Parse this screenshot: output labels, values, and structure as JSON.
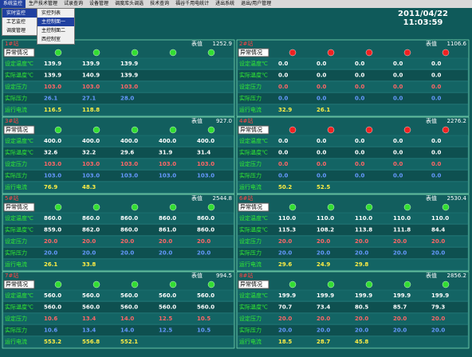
{
  "menu": [
    "系统监控",
    "生产技术管理",
    "试录查询",
    "设备管理",
    "调度库头调选",
    "技术查询",
    "福谷千用电统计",
    "进出系统",
    "退出/用户管理"
  ],
  "dropdown": [
    "实时监控",
    "工艺监控",
    "调度管理"
  ],
  "submenu": [
    "实控列表",
    "主控制面一",
    "主控制面二",
    "西控制室"
  ],
  "date": "2011/04/22",
  "time": "11:03:59",
  "status_label": "异常情况",
  "total_label": "表值",
  "panels": [
    {
      "name": "1#站",
      "total": "1252.9",
      "lamp": "#33dd33",
      "rows": [
        {
          "label": "设定温度℃",
          "values": [
            "139.9",
            "139.9",
            "139.9"
          ]
        },
        {
          "label": "实际温度℃",
          "values": [
            "139.9",
            "140.9",
            "139.9"
          ]
        },
        {
          "label": "设定压力",
          "values": [
            "103.0",
            "103.0",
            "103.0"
          ]
        },
        {
          "label": "实际压力",
          "values": [
            "26.1",
            "27.1",
            "28.0"
          ]
        },
        {
          "label": "运行电流",
          "values": [
            "116.5",
            "118.8"
          ]
        }
      ]
    },
    {
      "name": "2#站",
      "total": "1106.6",
      "lamp": "#ee2222",
      "rows": [
        {
          "label": "设定温度℃",
          "values": [
            "0.0",
            "0.0",
            "0.0",
            "0.0",
            "0.0"
          ]
        },
        {
          "label": "实际温度℃",
          "values": [
            "0.0",
            "0.0",
            "0.0",
            "0.0",
            "0.0"
          ]
        },
        {
          "label": "设定压力",
          "values": [
            "0.0",
            "0.0",
            "0.0",
            "0.0",
            "0.0"
          ]
        },
        {
          "label": "实际压力",
          "values": [
            "0.0",
            "0.0",
            "0.0",
            "0.0",
            "0.0"
          ]
        },
        {
          "label": "运行电流",
          "values": [
            "32.9",
            "26.1"
          ]
        }
      ]
    },
    {
      "name": "3#站",
      "total": "927.0",
      "lamp": "#33dd33",
      "rows": [
        {
          "label": "设定温度℃",
          "values": [
            "400.0",
            "400.0",
            "400.0",
            "400.0",
            "400.0"
          ]
        },
        {
          "label": "实际温度℃",
          "values": [
            "32.6",
            "32.2",
            "29.6",
            "31.9",
            "31.4"
          ]
        },
        {
          "label": "设定压力",
          "values": [
            "103.0",
            "103.0",
            "103.0",
            "103.0",
            "103.0"
          ]
        },
        {
          "label": "实际压力",
          "values": [
            "103.0",
            "103.0",
            "103.0",
            "103.0",
            "103.0"
          ]
        },
        {
          "label": "运行电流",
          "values": [
            "76.9",
            "48.3"
          ]
        }
      ]
    },
    {
      "name": "4#站",
      "total": "2276.2",
      "lamp": "#ee2222",
      "rows": [
        {
          "label": "设定温度℃",
          "values": [
            "0.0",
            "0.0",
            "0.0",
            "0.0",
            "0.0"
          ]
        },
        {
          "label": "实际温度℃",
          "values": [
            "0.0",
            "0.0",
            "0.0",
            "0.0",
            "0.0"
          ]
        },
        {
          "label": "设定压力",
          "values": [
            "0.0",
            "0.0",
            "0.0",
            "0.0",
            "0.0"
          ]
        },
        {
          "label": "实际压力",
          "values": [
            "0.0",
            "0.0",
            "0.0",
            "0.0",
            "0.0"
          ]
        },
        {
          "label": "运行电流",
          "values": [
            "50.2",
            "52.5"
          ]
        }
      ]
    },
    {
      "name": "5#站",
      "total": "2544.8",
      "lamp": "#33dd33",
      "rows": [
        {
          "label": "设定温度℃",
          "values": [
            "860.0",
            "860.0",
            "860.0",
            "860.0",
            "860.0"
          ]
        },
        {
          "label": "实际温度℃",
          "values": [
            "859.0",
            "862.0",
            "860.0",
            "861.0",
            "860.0"
          ]
        },
        {
          "label": "设定压力",
          "values": [
            "20.0",
            "20.0",
            "20.0",
            "20.0",
            "20.0"
          ]
        },
        {
          "label": "实际压力",
          "values": [
            "20.0",
            "20.0",
            "20.0",
            "20.0",
            "20.0"
          ]
        },
        {
          "label": "运行电流",
          "values": [
            "26.1",
            "33.8"
          ]
        }
      ]
    },
    {
      "name": "6#站",
      "total": "2530.4",
      "lamp": "#33dd33",
      "rows": [
        {
          "label": "设定温度℃",
          "values": [
            "110.0",
            "110.0",
            "110.0",
            "110.0",
            "110.0"
          ]
        },
        {
          "label": "实际温度℃",
          "values": [
            "115.3",
            "108.2",
            "113.8",
            "111.8",
            "84.4"
          ]
        },
        {
          "label": "设定压力",
          "values": [
            "20.0",
            "20.0",
            "20.0",
            "20.0",
            "20.0"
          ]
        },
        {
          "label": "实际压力",
          "values": [
            "20.0",
            "20.0",
            "20.0",
            "20.0",
            "20.0"
          ]
        },
        {
          "label": "运行电流",
          "values": [
            "29.6",
            "24.9",
            "29.8"
          ]
        }
      ]
    },
    {
      "name": "7#站",
      "total": "994.5",
      "lamp": "#33dd33",
      "rows": [
        {
          "label": "设定温度℃",
          "values": [
            "560.0",
            "560.0",
            "560.0",
            "560.0",
            "560.0"
          ]
        },
        {
          "label": "实际温度℃",
          "values": [
            "560.0",
            "560.0",
            "560.0",
            "560.0",
            "560.0"
          ]
        },
        {
          "label": "设定压力",
          "values": [
            "10.6",
            "13.4",
            "14.0",
            "12.5",
            "10.5"
          ]
        },
        {
          "label": "实际压力",
          "values": [
            "10.6",
            "13.4",
            "14.0",
            "12.5",
            "10.5"
          ]
        },
        {
          "label": "运行电流",
          "values": [
            "553.2",
            "556.8",
            "552.1"
          ]
        }
      ]
    },
    {
      "name": "8#站",
      "total": "2856.2",
      "lamp": "#33dd33",
      "rows": [
        {
          "label": "设定温度℃",
          "values": [
            "199.9",
            "199.9",
            "199.9",
            "199.9",
            "199.9"
          ]
        },
        {
          "label": "实际温度℃",
          "values": [
            "70.7",
            "73.4",
            "80.5",
            "85.7",
            "79.3"
          ]
        },
        {
          "label": "设定压力",
          "values": [
            "20.0",
            "20.0",
            "20.0",
            "20.0",
            "20.0"
          ]
        },
        {
          "label": "实际压力",
          "values": [
            "20.0",
            "20.0",
            "20.0",
            "20.0",
            "20.0"
          ]
        },
        {
          "label": "运行电流",
          "values": [
            "18.5",
            "28.7",
            "45.8"
          ]
        }
      ]
    }
  ]
}
